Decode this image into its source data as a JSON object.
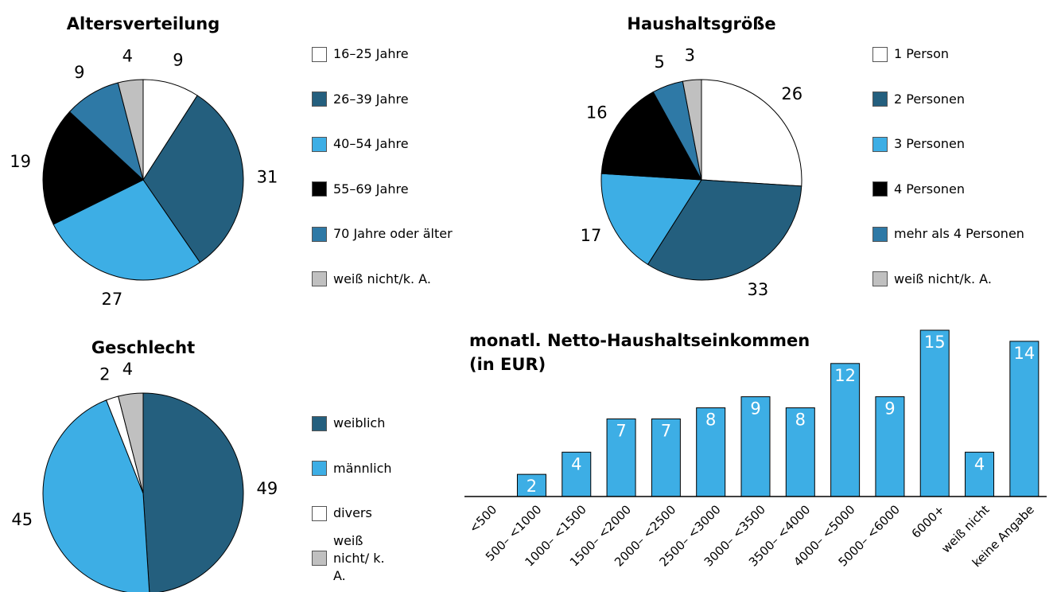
{
  "chart_data": [
    {
      "type": "pie",
      "title": "Altersverteilung",
      "categories": [
        "16–25 Jahre",
        "26–39 Jahre",
        "40–54 Jahre",
        "55–69 Jahre",
        "70 Jahre oder älter",
        "weiß nicht/k. A."
      ],
      "values": [
        9,
        31,
        27,
        19,
        9,
        4
      ],
      "colors": [
        "#ffffff",
        "#245f7e",
        "#3daee5",
        "#000000",
        "#2e79a6",
        "#c0c0c0"
      ]
    },
    {
      "type": "pie",
      "title": "Haushaltsgröße",
      "categories": [
        "1 Person",
        "2 Personen",
        "3 Personen",
        "4 Personen",
        "mehr als 4 Personen",
        "weiß nicht/k. A."
      ],
      "values": [
        26,
        33,
        17,
        16,
        5,
        3
      ],
      "colors": [
        "#ffffff",
        "#245f7e",
        "#3daee5",
        "#000000",
        "#2e79a6",
        "#c0c0c0"
      ]
    },
    {
      "type": "pie",
      "title": "Geschlecht",
      "categories": [
        "weiblich",
        "männlich",
        "divers",
        "weiß nicht/ k. A."
      ],
      "values": [
        49,
        45,
        2,
        4
      ],
      "colors": [
        "#245f7e",
        "#3daee5",
        "#ffffff",
        "#c0c0c0"
      ]
    },
    {
      "type": "bar",
      "title": "monatl. Netto-Haushaltseinkommen (in EUR)",
      "categories": [
        "<500",
        "500– <1000",
        "1000– <1500",
        "1500– <2000",
        "2000– <2500",
        "2500– <3000",
        "3000– <3500",
        "3500– <4000",
        "4000– <5000",
        "5000– <6000",
        "6000+",
        "weiß nicht",
        "keine Angabe"
      ],
      "values": [
        0,
        2,
        4,
        7,
        7,
        8,
        9,
        8,
        12,
        9,
        15,
        4,
        14
      ],
      "color": "#3daee5",
      "ylim": [
        0,
        15
      ]
    }
  ]
}
